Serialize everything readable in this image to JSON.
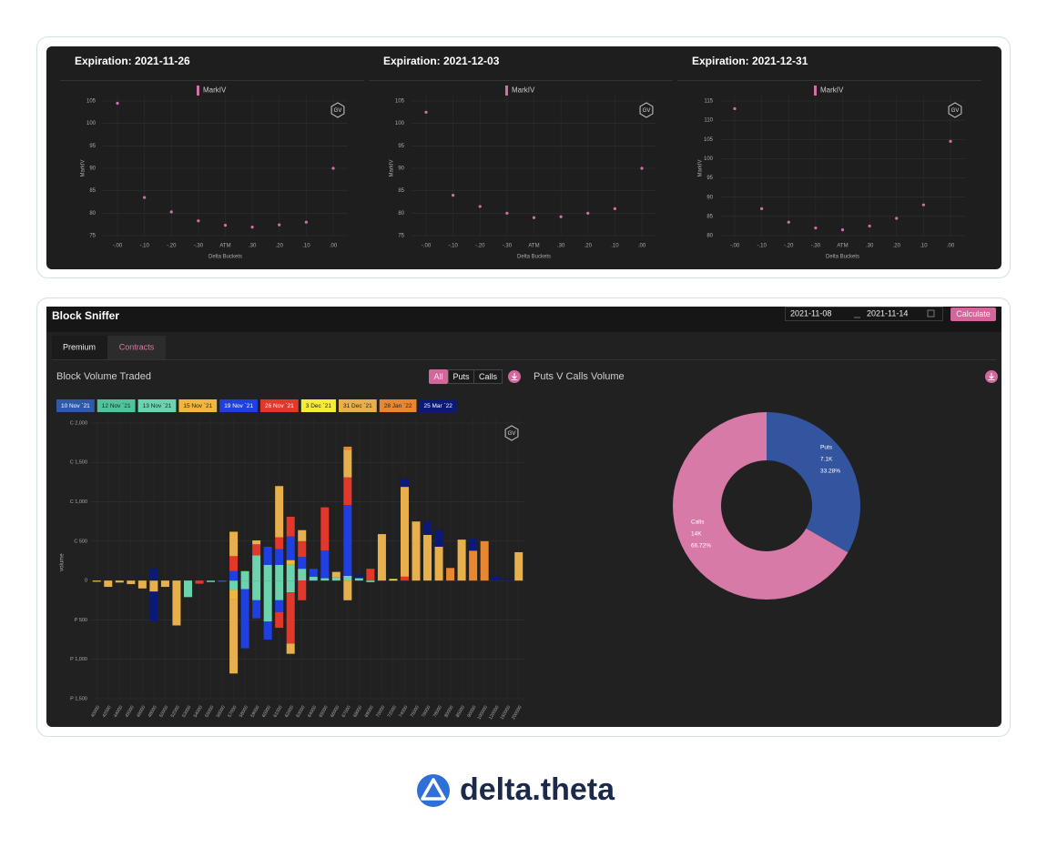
{
  "chart_data": [
    {
      "type": "line",
      "title": "Expiration: 2021-11-26",
      "xlabel": "Delta Buckets",
      "ylabel": "MarkIV",
      "categories": [
        "-.00",
        "-.10",
        "-.20",
        "-.30",
        "ATM",
        ".30",
        ".20",
        ".10",
        ".00"
      ],
      "series": [
        {
          "name": "MarkIV",
          "color": "#d66fa7",
          "values": [
            104.5,
            83.5,
            80.3,
            78.3,
            77.3,
            76.9,
            77.4,
            78.0,
            90.0
          ]
        }
      ],
      "ylim": [
        75,
        105
      ],
      "yticks": [
        75,
        80,
        85,
        90,
        95,
        100,
        105
      ],
      "grid": true
    },
    {
      "type": "line",
      "title": "Expiration: 2021-12-03",
      "xlabel": "Delta Buckets",
      "ylabel": "MarkIV",
      "categories": [
        "-.00",
        "-.10",
        "-.20",
        "-.30",
        "ATM",
        ".30",
        ".20",
        ".10",
        ".00"
      ],
      "series": [
        {
          "name": "MarkIV",
          "color": "#d66fa7",
          "values": [
            102.5,
            84.0,
            81.5,
            80.0,
            79.0,
            79.2,
            80.0,
            81.0,
            90.0
          ]
        }
      ],
      "ylim": [
        75,
        105
      ],
      "yticks": [
        75,
        80,
        85,
        90,
        95,
        100,
        105
      ],
      "grid": true
    },
    {
      "type": "line",
      "title": "Expiration: 2021-12-31",
      "xlabel": "Delta Buckets",
      "ylabel": "MarkIV",
      "categories": [
        "-.00",
        "-.10",
        "-.20",
        "-.30",
        "ATM",
        ".30",
        ".20",
        ".10",
        ".00"
      ],
      "series": [
        {
          "name": "MarkIV",
          "color": "#d66fa7",
          "values": [
            113.0,
            87.0,
            83.5,
            82.0,
            81.5,
            82.5,
            84.5,
            88.0,
            104.5
          ]
        }
      ],
      "ylim": [
        80,
        115
      ],
      "yticks": [
        80,
        85,
        90,
        95,
        100,
        105,
        110,
        115
      ],
      "grid": true
    },
    {
      "type": "bar",
      "stacked": true,
      "title": "Block Volume Traded",
      "ylabel": "volume",
      "categories": [
        "40000",
        "42000",
        "44000",
        "45000",
        "46000",
        "48000",
        "50000",
        "52000",
        "53000",
        "54000",
        "55000",
        "56000",
        "57000",
        "58000",
        "59000",
        "60000",
        "61000",
        "62000",
        "63000",
        "64000",
        "65000",
        "66000",
        "67000",
        "68000",
        "69000",
        "70000",
        "72000",
        "74000",
        "75000",
        "76000",
        "78000",
        "80000",
        "85000",
        "90000",
        "100000",
        "120000",
        "150000",
        "200000"
      ],
      "series": [
        {
          "name": "10 Nov `21",
          "color": "#2f5aa8",
          "values": [
            null,
            null,
            null,
            null,
            null,
            null,
            null,
            null,
            null,
            null,
            null,
            null,
            null,
            null,
            null,
            null,
            null,
            null,
            null,
            null,
            null,
            null,
            null,
            null,
            null,
            null,
            null,
            null,
            null,
            null,
            null,
            null,
            null,
            null,
            null,
            null,
            null,
            null
          ],
          "put_values": [
            null,
            null,
            null,
            null,
            null,
            null,
            null,
            null,
            null,
            null,
            null,
            -15,
            null,
            null,
            null,
            null,
            null,
            null,
            null,
            null,
            null,
            null,
            null,
            null,
            null,
            null,
            null,
            null,
            null,
            null,
            null,
            null,
            null,
            null,
            null,
            null,
            null,
            null
          ]
        },
        {
          "name": "12 Nov `21",
          "color": "#4fc49a",
          "values": [
            null,
            null,
            null,
            null,
            null,
            null,
            null,
            null,
            null,
            null,
            null,
            null,
            null,
            null,
            null,
            null,
            null,
            null,
            null,
            null,
            null,
            null,
            null,
            null,
            null,
            null,
            null,
            null,
            null,
            null,
            null,
            null,
            null,
            null,
            null,
            null,
            null,
            null
          ],
          "put_values": [
            null,
            null,
            null,
            null,
            null,
            null,
            null,
            null,
            null,
            null,
            -20,
            null,
            null,
            null,
            null,
            null,
            null,
            null,
            null,
            null,
            null,
            null,
            null,
            null,
            null,
            null,
            null,
            null,
            null,
            null,
            null,
            null,
            null,
            null,
            null,
            null,
            null,
            null
          ]
        },
        {
          "name": "13 Nov `21",
          "color": "#6bd3ae",
          "values": [
            null,
            null,
            null,
            null,
            null,
            null,
            null,
            null,
            null,
            null,
            null,
            null,
            null,
            120,
            320,
            200,
            200,
            200,
            150,
            50,
            30,
            40,
            60,
            30,
            null,
            null,
            null,
            null,
            null,
            null,
            null,
            null,
            null,
            null,
            null,
            null,
            null,
            null
          ],
          "put_values": [
            null,
            null,
            null,
            null,
            null,
            null,
            null,
            null,
            -210,
            null,
            null,
            null,
            -120,
            -110,
            -250,
            -520,
            -250,
            -150,
            null,
            null,
            null,
            null,
            null,
            null,
            -20,
            null,
            null,
            null,
            null,
            null,
            null,
            null,
            null,
            null,
            null,
            null,
            null,
            null
          ]
        },
        {
          "name": "15 Nov `21",
          "color": "#efb73e",
          "values": [
            null,
            null,
            null,
            null,
            null,
            null,
            null,
            null,
            null,
            null,
            null,
            null,
            null,
            null,
            null,
            null,
            null,
            60,
            null,
            null,
            null,
            null,
            null,
            null,
            null,
            null,
            null,
            null,
            null,
            null,
            null,
            null,
            null,
            null,
            null,
            null,
            null,
            null
          ],
          "put_values": [
            -15,
            null,
            null,
            null,
            null,
            null,
            null,
            null,
            null,
            null,
            null,
            null,
            -110,
            null,
            null,
            null,
            null,
            null,
            null,
            null,
            null,
            null,
            null,
            null,
            null,
            null,
            null,
            null,
            null,
            null,
            null,
            null,
            null,
            null,
            null,
            null,
            null,
            null
          ]
        },
        {
          "name": "19 Nov `21",
          "color": "#1f3fe0",
          "values": [
            null,
            null,
            null,
            null,
            null,
            null,
            null,
            null,
            null,
            null,
            null,
            null,
            120,
            null,
            null,
            230,
            200,
            300,
            150,
            100,
            350,
            null,
            900,
            null,
            null,
            null,
            null,
            null,
            null,
            null,
            null,
            null,
            null,
            null,
            null,
            null,
            null,
            null
          ],
          "put_values": [
            null,
            null,
            null,
            null,
            null,
            null,
            null,
            null,
            null,
            null,
            null,
            null,
            null,
            -750,
            -230,
            -230,
            -150,
            null,
            null,
            null,
            null,
            null,
            null,
            null,
            null,
            null,
            null,
            null,
            null,
            null,
            null,
            null,
            null,
            null,
            null,
            null,
            null,
            null
          ]
        },
        {
          "name": "26 Nov `21",
          "color": "#e2382b",
          "values": [
            null,
            null,
            null,
            null,
            null,
            null,
            null,
            null,
            null,
            null,
            null,
            null,
            190,
            null,
            140,
            null,
            150,
            250,
            200,
            null,
            550,
            null,
            350,
            null,
            150,
            null,
            null,
            50,
            null,
            null,
            null,
            null,
            null,
            null,
            null,
            null,
            null,
            null
          ],
          "put_values": [
            null,
            null,
            null,
            null,
            null,
            null,
            null,
            null,
            null,
            -40,
            null,
            null,
            null,
            null,
            null,
            null,
            -200,
            -650,
            -250,
            null,
            null,
            null,
            null,
            null,
            null,
            null,
            null,
            null,
            null,
            null,
            null,
            null,
            null,
            null,
            null,
            null,
            null,
            null
          ]
        },
        {
          "name": "3 Dec `21",
          "color": "#f5ec35",
          "values": [
            null,
            null,
            null,
            null,
            null,
            null,
            null,
            null,
            null,
            null,
            null,
            null,
            null,
            null,
            null,
            null,
            null,
            null,
            null,
            null,
            null,
            null,
            null,
            null,
            null,
            null,
            20,
            null,
            null,
            null,
            null,
            null,
            null,
            null,
            null,
            null,
            null,
            null
          ]
        },
        {
          "name": "31 Dec `21",
          "color": "#e7b04c",
          "values": [
            null,
            null,
            null,
            null,
            null,
            null,
            null,
            null,
            null,
            null,
            null,
            null,
            310,
            null,
            50,
            null,
            650,
            null,
            140,
            null,
            null,
            70,
            350,
            null,
            null,
            590,
            null,
            1140,
            750,
            580,
            430,
            null,
            520,
            null,
            null,
            null,
            null,
            360
          ],
          "put_values": [
            null,
            -80,
            -25,
            -45,
            -100,
            -140,
            -80,
            -570,
            null,
            null,
            null,
            null,
            -950,
            null,
            null,
            null,
            null,
            -130,
            null,
            null,
            null,
            null,
            -250,
            null,
            null,
            null,
            null,
            null,
            null,
            null,
            null,
            null,
            null,
            null,
            null,
            null,
            null,
            null
          ]
        },
        {
          "name": "28 Jan `22",
          "color": "#e8872f",
          "values": [
            null,
            null,
            null,
            null,
            null,
            null,
            null,
            null,
            null,
            null,
            null,
            null,
            null,
            null,
            null,
            null,
            null,
            null,
            null,
            null,
            null,
            null,
            40,
            null,
            null,
            null,
            null,
            null,
            null,
            null,
            null,
            160,
            null,
            380,
            500,
            null,
            null,
            null
          ]
        },
        {
          "name": "25 Mar `22",
          "color": "#0b1a7a",
          "values": [
            null,
            null,
            null,
            null,
            null,
            150,
            null,
            null,
            null,
            null,
            null,
            null,
            null,
            null,
            null,
            null,
            null,
            null,
            null,
            null,
            null,
            null,
            null,
            40,
            null,
            null,
            null,
            100,
            null,
            170,
            210,
            null,
            null,
            150,
            null,
            60,
            20,
            null
          ],
          "put_values": [
            null,
            null,
            null,
            null,
            null,
            -380,
            null,
            null,
            null,
            null,
            null,
            null,
            null,
            null,
            null,
            null,
            null,
            null,
            null,
            null,
            null,
            null,
            null,
            null,
            null,
            null,
            null,
            null,
            null,
            null,
            null,
            null,
            null,
            null,
            null,
            null,
            null,
            null
          ]
        }
      ],
      "ylim": [
        -1500,
        2000
      ],
      "yticks": [
        {
          "value": -1500,
          "label": "P 1,500"
        },
        {
          "value": -1000,
          "label": "P 1,000"
        },
        {
          "value": -500,
          "label": "P 500"
        },
        0,
        {
          "value": 500,
          "label": "C 500"
        },
        {
          "value": 1000,
          "label": "C 1,000"
        },
        {
          "value": 1500,
          "label": "C 1,500"
        },
        {
          "value": 2000,
          "label": "C 2,000"
        }
      ],
      "grid": true
    },
    {
      "type": "donut",
      "title": "Puts V Calls Volume",
      "categories": [
        "Puts",
        "Calls"
      ],
      "colors": [
        "#3355a0",
        "#d87aa8"
      ],
      "values": [
        33.28,
        66.72
      ],
      "value_labels": [
        "33.28%",
        "66.72%"
      ],
      "volume_labels": [
        "7.1K",
        "14K"
      ]
    }
  ],
  "block_sniffer": {
    "title": "Block Sniffer",
    "date_from": "2021-11-08",
    "date_to": "2021-11-14",
    "calculate": "Calculate",
    "tabs": [
      "Premium",
      "Contracts"
    ],
    "filters": [
      "All",
      "Puts",
      "Calls"
    ]
  },
  "watermark": "GV",
  "logo": "delta.theta"
}
